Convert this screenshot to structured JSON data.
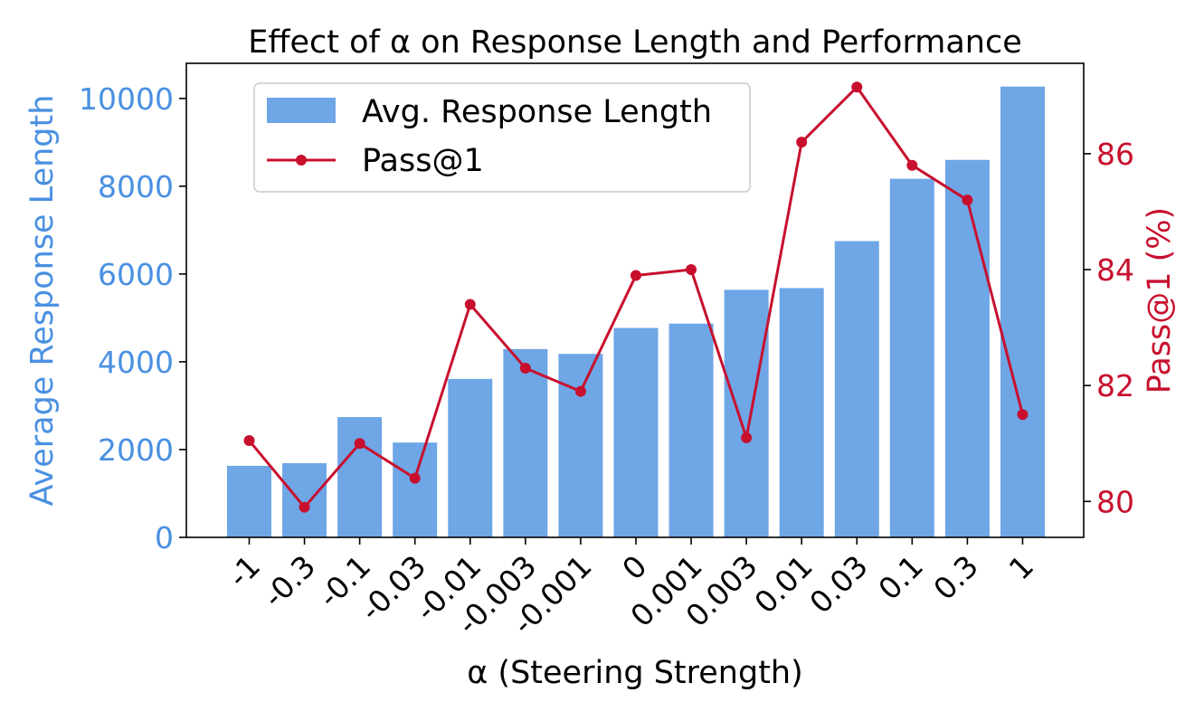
{
  "chart_data": {
    "type": "bar",
    "title": "Effect of α on Response Length and Performance",
    "xlabel": "α (Steering Strength)",
    "ylabel_left": "Average Response Length",
    "ylabel_right": "Pass@1 (%)",
    "categories": [
      "-1",
      "-0.3",
      "-0.1",
      "-0.03",
      "-0.01",
      "-0.003",
      "-0.001",
      "0",
      "0.001",
      "0.003",
      "0.01",
      "0.03",
      "0.1",
      "0.3",
      "1"
    ],
    "ylim_left": [
      0,
      10800
    ],
    "yticks_left": [
      "0",
      "2000",
      "4000",
      "6000",
      "8000",
      "10000"
    ],
    "ylim_right": [
      79.38,
      87.56
    ],
    "yticks_right": [
      "80",
      "82",
      "84",
      "86"
    ],
    "grid": false,
    "legend_placement": "upper-left",
    "series": [
      {
        "name": "Avg. Response Length",
        "kind": "bar",
        "axis": "left",
        "color": "#6ea6e6",
        "values": [
          1630,
          1690,
          2740,
          2160,
          3610,
          4290,
          4180,
          4770,
          4870,
          5640,
          5680,
          6750,
          8170,
          8600,
          10270
        ]
      },
      {
        "name": "Pass@1",
        "kind": "line",
        "axis": "right",
        "color": "#c8102e",
        "values": [
          81.05,
          79.9,
          81.0,
          80.4,
          83.4,
          82.3,
          81.9,
          83.9,
          84.0,
          81.1,
          86.2,
          87.15,
          85.8,
          85.2,
          81.5
        ]
      }
    ]
  },
  "colors": {
    "left_axis": "#4a90e2",
    "right_axis": "#c8102e",
    "bar": "#6ea6e6",
    "line": "#c8102e"
  }
}
